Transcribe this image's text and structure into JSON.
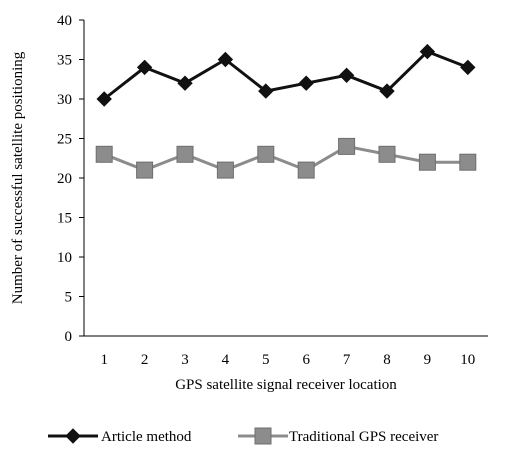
{
  "chart_data": {
    "type": "line",
    "title": "",
    "xlabel": "GPS satellite signal receiver location",
    "ylabel": "Number of successful satellite positioning",
    "x": [
      1,
      2,
      3,
      4,
      5,
      6,
      7,
      8,
      9,
      10
    ],
    "ylim": [
      0,
      40
    ],
    "yticks": [
      0,
      5,
      10,
      15,
      20,
      25,
      30,
      35,
      40
    ],
    "grid": false,
    "legend_position": "bottom",
    "series": [
      {
        "name": "Article method",
        "values": [
          30,
          34,
          32,
          35,
          31,
          32,
          33,
          31,
          36,
          34
        ],
        "color": "#111111",
        "marker": "diamond"
      },
      {
        "name": "Traditional GPS receiver",
        "values": [
          23,
          21,
          23,
          21,
          23,
          21,
          24,
          23,
          22,
          22
        ],
        "color": "#8c8c8c",
        "marker": "square"
      }
    ]
  }
}
